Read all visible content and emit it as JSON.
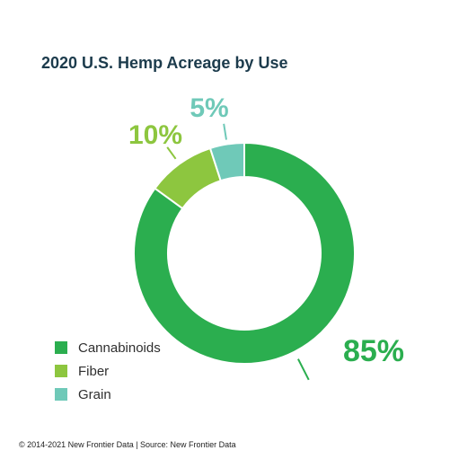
{
  "chart_data": {
    "type": "pie",
    "title": "2020 U.S. Hemp Acreage by Use",
    "categories": [
      "Cannabinoids",
      "Fiber",
      "Grain"
    ],
    "values": [
      85,
      10,
      5
    ],
    "data_labels": [
      "85%",
      "10%",
      "5%"
    ],
    "colors": [
      "#2bae4f",
      "#8dc63f",
      "#6fc9b8"
    ],
    "legend_position": "bottom-left",
    "donut": true
  },
  "footer": "© 2014-2021 New Frontier Data | Source: New Frontier Data"
}
